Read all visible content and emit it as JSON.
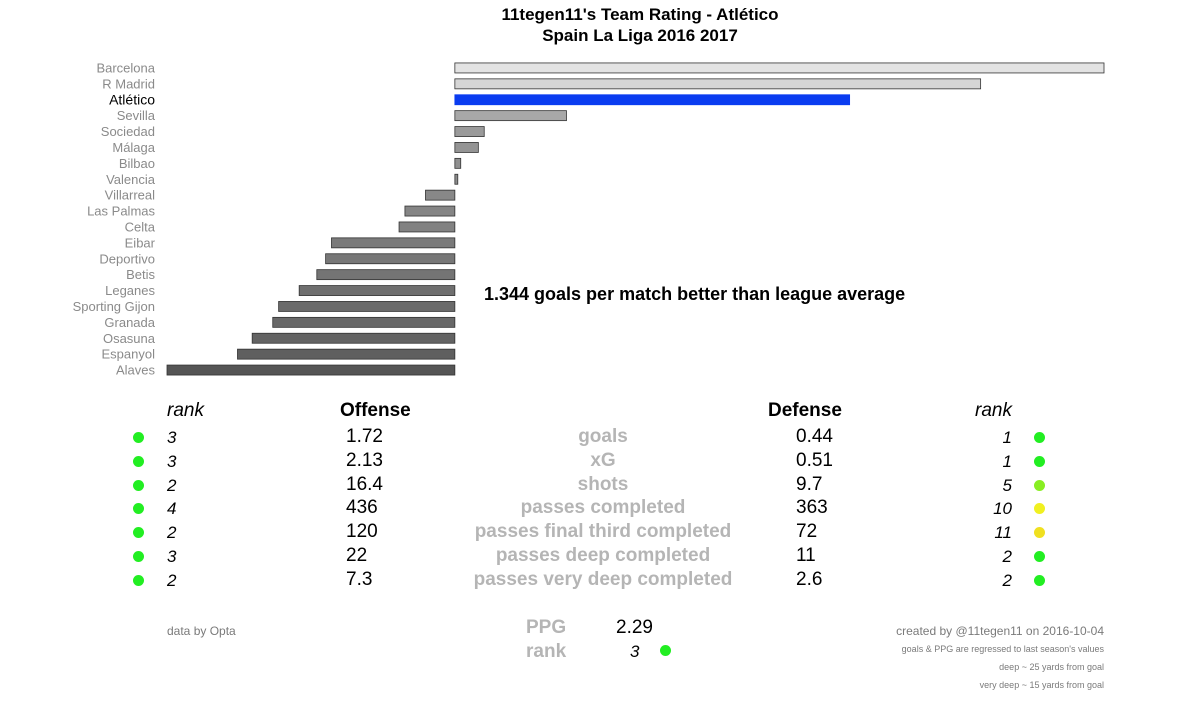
{
  "title": {
    "line1": "11tegen11's Team Rating  -   Atlético",
    "line2": "Spain La Liga 2016 2017"
  },
  "headline": "1.344 goals per match better than league average",
  "chart_data": {
    "type": "bar",
    "orientation": "horizontal",
    "title": "11tegen11's Team Rating - Atlético",
    "subtitle": "Spain La Liga 2016 2017",
    "highlight": "Atlético",
    "highlight_color": "#0a3cf0",
    "categories": [
      "Barcelona",
      "R Madrid",
      "Atlético",
      "Sevilla",
      "Sociedad",
      "Málaga",
      "Bilbao",
      "Valencia",
      "Villarreal",
      "Las Palmas",
      "Celta",
      "Eibar",
      "Deportivo",
      "Betis",
      "Leganes",
      "Sporting Gijon",
      "Granada",
      "Osasuna",
      "Espanyol",
      "Alaves"
    ],
    "values": [
      2.21,
      1.79,
      1.344,
      0.38,
      0.1,
      0.08,
      0.02,
      0.01,
      -0.1,
      -0.17,
      -0.19,
      -0.42,
      -0.44,
      -0.47,
      -0.53,
      -0.6,
      -0.62,
      -0.69,
      -0.74,
      -0.98
    ],
    "bar_colors": [
      "#e3e3e3",
      "#d6d6d6",
      "#0a3cf0",
      "#a8a8a8",
      "#9a9a9a",
      "#949494",
      "#909090",
      "#8c8c8c",
      "#888888",
      "#858585",
      "#828282",
      "#7a7a7a",
      "#777777",
      "#747474",
      "#6f6f6f",
      "#6a6a6a",
      "#686868",
      "#636363",
      "#5f5f5f",
      "#555555"
    ],
    "xlim": [
      -0.98,
      2.21
    ],
    "grid": false
  },
  "stats": {
    "header": {
      "rank_left": "rank",
      "offense": "Offense",
      "defense": "Defense",
      "rank_right": "rank"
    },
    "rows": [
      {
        "metric": "goals",
        "off_rank": "3",
        "off": "1.72",
        "def": "0.44",
        "def_rank": "1",
        "off_color": "#22ee22",
        "def_color": "#22ee22"
      },
      {
        "metric": "xG",
        "off_rank": "3",
        "off": "2.13",
        "def": "0.51",
        "def_rank": "1",
        "off_color": "#22ee22",
        "def_color": "#22ee22"
      },
      {
        "metric": "shots",
        "off_rank": "2",
        "off": "16.4",
        "def": "9.7",
        "def_rank": "5",
        "off_color": "#22ee22",
        "def_color": "#88ee22"
      },
      {
        "metric": "passes completed",
        "off_rank": "4",
        "off": "436",
        "def": "363",
        "def_rank": "10",
        "off_color": "#22ee22",
        "def_color": "#f0f020"
      },
      {
        "metric": "passes final third completed",
        "off_rank": "2",
        "off": "120",
        "def": "72",
        "def_rank": "11",
        "off_color": "#22ee22",
        "def_color": "#f0e020"
      },
      {
        "metric": "passes deep completed",
        "off_rank": "3",
        "off": "22",
        "def": "11",
        "def_rank": "2",
        "off_color": "#22ee22",
        "def_color": "#22ee22"
      },
      {
        "metric": "passes very deep completed",
        "off_rank": "2",
        "off": "7.3",
        "def": "2.6",
        "def_rank": "2",
        "off_color": "#22ee22",
        "def_color": "#22ee22"
      }
    ]
  },
  "ppg": {
    "label": "PPG",
    "value": "2.29",
    "rank_label": "rank",
    "rank": "3",
    "rank_color": "#22ee22"
  },
  "footer": {
    "source": "data by Opta",
    "created": "created by @11tegen11 on 2016-10-04",
    "note1": "goals & PPG are regressed to last season's values",
    "note2": "deep ~ 25 yards from goal",
    "note3": "very deep ~ 15 yards from goal"
  }
}
